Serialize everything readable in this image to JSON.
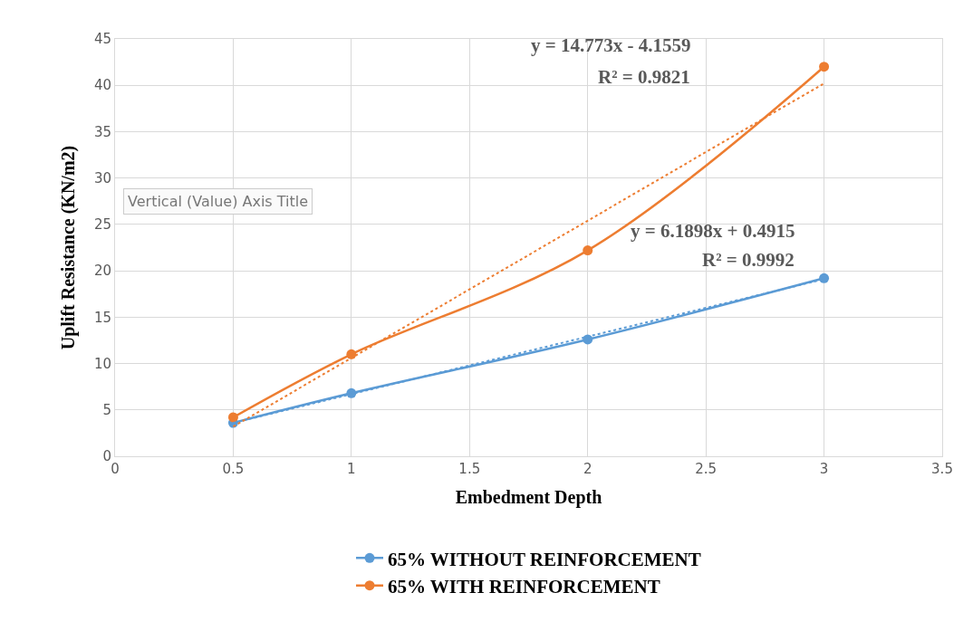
{
  "chart_data": {
    "type": "line",
    "xlabel": "Embedment Depth",
    "ylabel": "Uplift Resistance (KN/m2)",
    "series": [
      {
        "name": "65% WITHOUT REINFORCEMENT",
        "color": "#5b9bd5",
        "x": [
          0.5,
          1,
          2,
          3
        ],
        "values": [
          3.6,
          6.8,
          12.6,
          19.2
        ],
        "marker": "circle",
        "line_style": "solid"
      },
      {
        "name": "65% WITH REINFORCEMENT",
        "color": "#ed7d31",
        "x": [
          0.5,
          1,
          2,
          3
        ],
        "values": [
          4.2,
          11.0,
          22.2,
          42.0
        ],
        "marker": "circle",
        "line_style": "solid"
      },
      {
        "color": "#5b9bd5",
        "x": [
          0.5,
          3
        ],
        "values": [
          3.6,
          19.1
        ],
        "marker": "none",
        "line_style": "dotted"
      },
      {
        "color": "#ed7d31",
        "x": [
          0.5,
          3
        ],
        "values": [
          3.2,
          40.2
        ],
        "marker": "none",
        "line_style": "dotted"
      }
    ],
    "xlim": [
      0,
      3.5
    ],
    "xticks": [
      0,
      0.5,
      1,
      1.5,
      2,
      2.5,
      3,
      3.5
    ],
    "ylim": [
      0,
      45
    ],
    "yticks": [
      0,
      5,
      10,
      15,
      20,
      25,
      30,
      35,
      40,
      45
    ],
    "grid": true,
    "legend": "bottom",
    "annotations": [
      "y = 14.773x - 4.1559",
      "R² = 0.9821",
      "y = 6.1898x + 0.4915",
      "R² = 0.9992",
      "Vertical (Value) Axis Title"
    ]
  }
}
